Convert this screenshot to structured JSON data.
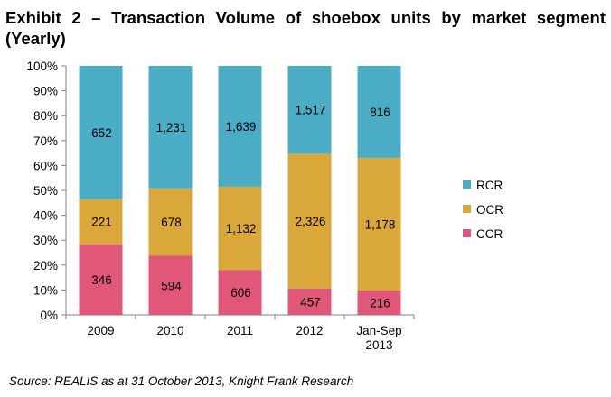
{
  "title": "Exhibit 2 – Transaction Volume of shoebox units by market segment (Yearly)",
  "source": "Source:  REALIS as at 31 October 2013, Knight Frank Research",
  "colors": {
    "RCR": "#4BACC6",
    "OCR": "#DAA73A",
    "CCR": "#E0577A",
    "axis": "#808080"
  },
  "chart_data": {
    "type": "bar",
    "stacked": "percent",
    "categories": [
      [
        "2009"
      ],
      [
        "2010"
      ],
      [
        "2011"
      ],
      [
        "2012"
      ],
      [
        "Jan-Sep",
        "2013"
      ]
    ],
    "series": [
      {
        "name": "CCR",
        "values": [
          346,
          594,
          606,
          457,
          216
        ],
        "labels": [
          "346",
          "594",
          "606",
          "457",
          "216"
        ]
      },
      {
        "name": "OCR",
        "values": [
          221,
          678,
          1132,
          2326,
          1178
        ],
        "labels": [
          "221",
          "678",
          "1,132",
          "2,326",
          "1,178"
        ]
      },
      {
        "name": "RCR",
        "values": [
          652,
          1231,
          1639,
          1517,
          816
        ],
        "labels": [
          "652",
          "1,231",
          "1,639",
          "1,517",
          "816"
        ]
      }
    ],
    "legend_order": [
      "RCR",
      "OCR",
      "CCR"
    ],
    "legend_position": "right",
    "yticks": [
      "0%",
      "10%",
      "20%",
      "30%",
      "40%",
      "50%",
      "60%",
      "70%",
      "80%",
      "90%",
      "100%"
    ],
    "ylim": [
      0,
      100
    ],
    "xlabel": "",
    "ylabel": ""
  }
}
